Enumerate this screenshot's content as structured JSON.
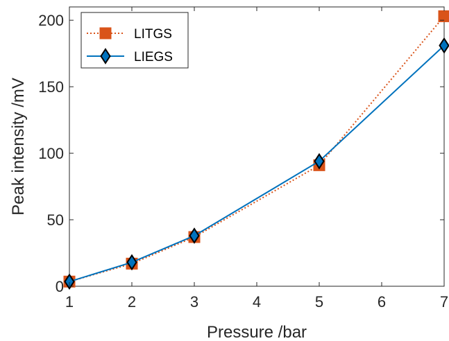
{
  "chart_data": {
    "type": "line",
    "xlabel": "Pressure /bar",
    "ylabel": "Peak intensity /mV",
    "xlim": [
      1,
      7
    ],
    "ylim": [
      0,
      210
    ],
    "xticks": [
      1,
      2,
      3,
      4,
      5,
      6,
      7
    ],
    "yticks": [
      0,
      50,
      100,
      150,
      200
    ],
    "grid": false,
    "legend_position": "top-left",
    "series": [
      {
        "name": "LITGS",
        "x": [
          1,
          2,
          3,
          5,
          7
        ],
        "y": [
          3.5,
          17,
          37,
          91,
          203
        ],
        "color": "#D95319",
        "line": "dotted",
        "marker": "square"
      },
      {
        "name": "LIEGS",
        "x": [
          1,
          2,
          3,
          5,
          7
        ],
        "y": [
          3.5,
          18,
          38,
          94,
          181
        ],
        "color": "#0072BD",
        "line": "solid",
        "marker": "diamond"
      }
    ]
  }
}
